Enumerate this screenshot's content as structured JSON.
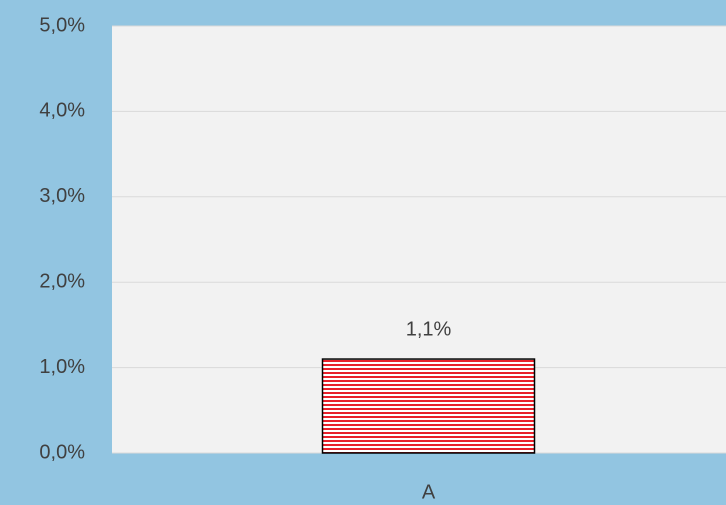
{
  "chart_data": {
    "type": "bar",
    "categories": [
      "A"
    ],
    "values": [
      1.1
    ],
    "value_labels": [
      "1,1%"
    ],
    "color": "#e8212b",
    "ylim": [
      0,
      5
    ],
    "yticks": [
      {
        "value": 0,
        "label": "0,0%"
      },
      {
        "value": 1,
        "label": "1,0%"
      },
      {
        "value": 2,
        "label": "2,0%"
      },
      {
        "value": 3,
        "label": "3,0%"
      },
      {
        "value": 4,
        "label": "4,0%"
      },
      {
        "value": 5,
        "label": "5,0%"
      }
    ],
    "grid": true
  }
}
